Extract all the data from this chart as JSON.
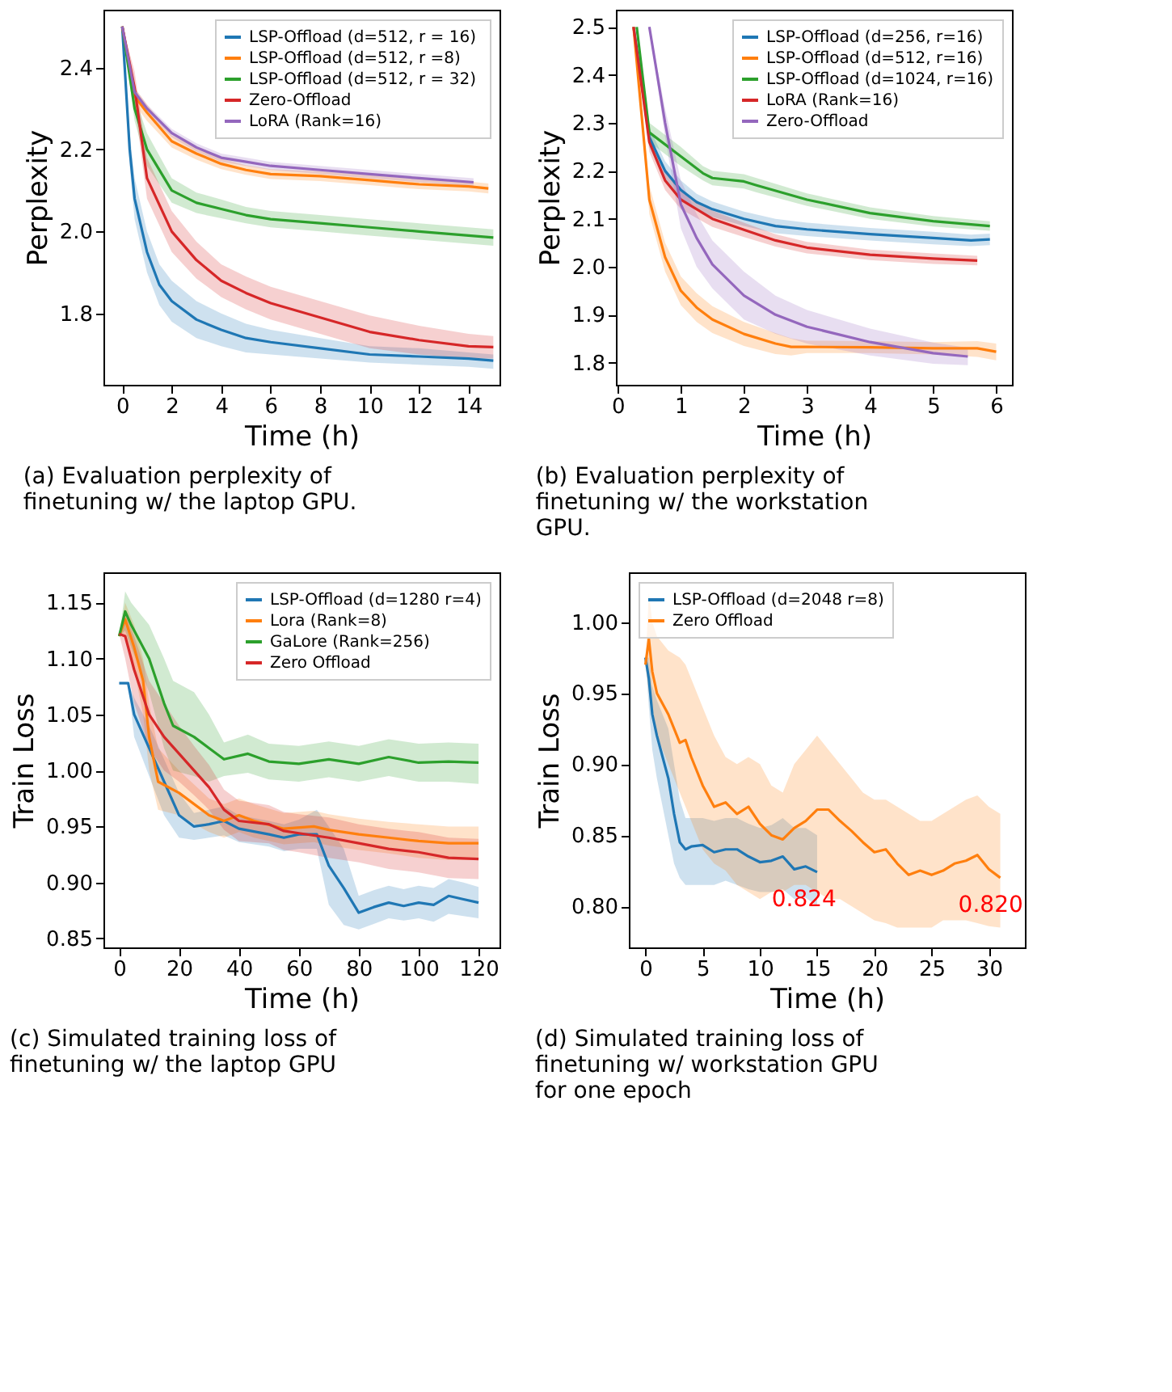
{
  "chart_data": [
    {
      "type": "line",
      "xlabel": "Time (h)",
      "ylabel": "Perplexity",
      "xlim": [
        -0.76,
        15.25
      ],
      "ylim": [
        1.626,
        2.541
      ],
      "xticks": [
        0,
        2,
        4,
        6,
        8,
        10,
        12,
        14
      ],
      "yticks": [
        1.8,
        {
          "value": 2.0,
          "label": "2.0"
        },
        2.2,
        2.4
      ],
      "legend": "top right",
      "grid": false,
      "annotations": [
        "(a) Evaluation perplexity of finetuning w/ the laptop GPU."
      ],
      "series": [
        {
          "name": "LSP-Offload (d=512, r = 16)",
          "color": "#1f77b4",
          "x": [
            0,
            0.3,
            0.5,
            1,
            1.5,
            2,
            3,
            4,
            5,
            6,
            8,
            10,
            12,
            14,
            15
          ],
          "values": [
            2.5,
            2.2,
            2.08,
            1.95,
            1.87,
            1.83,
            1.785,
            1.76,
            1.74,
            1.73,
            1.715,
            1.7,
            1.695,
            1.69,
            1.685
          ],
          "lower": [
            2.5,
            2.16,
            2.03,
            1.9,
            1.82,
            1.78,
            1.74,
            1.72,
            1.705,
            1.7,
            1.69,
            1.68,
            1.675,
            1.67,
            1.665
          ],
          "upper": [
            2.5,
            2.24,
            2.13,
            2.0,
            1.92,
            1.88,
            1.83,
            1.8,
            1.775,
            1.76,
            1.74,
            1.72,
            1.715,
            1.705,
            1.7
          ]
        },
        {
          "name": "LSP-Offload (d=512, r =8)",
          "color": "#ff7f0e",
          "x": [
            0,
            0.5,
            1,
            2,
            3,
            4,
            5,
            6,
            8,
            10,
            12,
            14,
            14.8
          ],
          "values": [
            2.5,
            2.33,
            2.29,
            2.22,
            2.19,
            2.165,
            2.15,
            2.14,
            2.135,
            2.125,
            2.115,
            2.11,
            2.105
          ],
          "lower": [
            2.5,
            2.31,
            2.27,
            2.205,
            2.175,
            2.152,
            2.138,
            2.128,
            2.123,
            2.113,
            2.103,
            2.098,
            2.093
          ],
          "upper": [
            2.5,
            2.35,
            2.31,
            2.235,
            2.205,
            2.178,
            2.162,
            2.152,
            2.147,
            2.137,
            2.127,
            2.122,
            2.117
          ]
        },
        {
          "name": "LSP-Offload (d=512,  r = 32)",
          "color": "#2ca02c",
          "x": [
            0,
            0.5,
            1,
            2,
            3,
            4,
            5,
            6,
            8,
            10,
            12,
            14,
            15
          ],
          "values": [
            2.5,
            2.3,
            2.2,
            2.1,
            2.07,
            2.055,
            2.04,
            2.03,
            2.02,
            2.01,
            2.0,
            1.99,
            1.985
          ],
          "lower": [
            2.5,
            2.27,
            2.16,
            2.07,
            2.045,
            2.032,
            2.02,
            2.01,
            2.0,
            1.99,
            1.98,
            1.97,
            1.965
          ],
          "upper": [
            2.5,
            2.33,
            2.24,
            2.13,
            2.095,
            2.078,
            2.06,
            2.05,
            2.04,
            2.03,
            2.02,
            2.01,
            2.005
          ]
        },
        {
          "name": "Zero-Offload",
          "color": "#d62728",
          "x": [
            0,
            0.5,
            1,
            2,
            3,
            4,
            5,
            6,
            8,
            10,
            12,
            14,
            15
          ],
          "values": [
            2.5,
            2.35,
            2.13,
            2.0,
            1.93,
            1.88,
            1.85,
            1.825,
            1.79,
            1.755,
            1.735,
            1.72,
            1.718
          ],
          "lower": [
            2.5,
            2.31,
            2.08,
            1.95,
            1.885,
            1.84,
            1.81,
            1.785,
            1.75,
            1.715,
            1.7,
            1.69,
            1.69
          ],
          "upper": [
            2.5,
            2.39,
            2.18,
            2.05,
            1.975,
            1.92,
            1.89,
            1.865,
            1.83,
            1.795,
            1.77,
            1.75,
            1.745
          ]
        },
        {
          "name": "LoRA (Rank=16)",
          "color": "#9467bd",
          "x": [
            0,
            0.5,
            1,
            2,
            3,
            4,
            5,
            6,
            8,
            10,
            12,
            14.2
          ],
          "values": [
            2.5,
            2.34,
            2.3,
            2.24,
            2.205,
            2.18,
            2.17,
            2.16,
            2.15,
            2.14,
            2.13,
            2.12
          ],
          "lower": [
            2.5,
            2.33,
            2.29,
            2.23,
            2.195,
            2.17,
            2.16,
            2.15,
            2.14,
            2.13,
            2.12,
            2.11
          ],
          "upper": [
            2.5,
            2.35,
            2.31,
            2.25,
            2.215,
            2.19,
            2.18,
            2.17,
            2.16,
            2.15,
            2.14,
            2.13
          ]
        }
      ]
    },
    {
      "type": "line",
      "xlabel": "Time (h)",
      "ylabel": "Perplexity",
      "xlim": [
        -0.03,
        6.25
      ],
      "ylim": [
        1.754,
        2.536
      ],
      "xticks": [
        0,
        1,
        2,
        3,
        4,
        5,
        6
      ],
      "yticks": [
        1.8,
        1.9,
        {
          "value": 2.0,
          "label": "2.0"
        },
        2.1,
        2.2,
        2.3,
        2.4,
        2.5
      ],
      "legend": "top right",
      "grid": false,
      "annotations": [
        "(b) Evaluation perplexity of finetuning w/ the workstation GPU."
      ],
      "series": [
        {
          "name": "LSP-Offload (d=256, r=16)",
          "color": "#1f77b4",
          "x": [
            0.25,
            0.5,
            0.75,
            1,
            1.25,
            1.5,
            2,
            2.5,
            3,
            4,
            5,
            5.6,
            5.9
          ],
          "values": [
            2.5,
            2.27,
            2.2,
            2.16,
            2.135,
            2.12,
            2.1,
            2.085,
            2.078,
            2.068,
            2.06,
            2.055,
            2.057
          ],
          "lower": [
            2.5,
            2.25,
            2.18,
            2.14,
            2.118,
            2.104,
            2.085,
            2.07,
            2.064,
            2.055,
            2.047,
            2.043,
            2.045
          ],
          "upper": [
            2.5,
            2.29,
            2.22,
            2.18,
            2.152,
            2.136,
            2.115,
            2.1,
            2.092,
            2.081,
            2.073,
            2.067,
            2.069
          ]
        },
        {
          "name": "LSP-Offload (d=512,  r=16)",
          "color": "#ff7f0e",
          "x": [
            0.25,
            0.5,
            0.75,
            1,
            1.25,
            1.5,
            2,
            2.5,
            2.75,
            3,
            4,
            5,
            5.7,
            6
          ],
          "values": [
            2.5,
            2.14,
            2.02,
            1.95,
            1.915,
            1.89,
            1.86,
            1.84,
            1.833,
            1.833,
            1.832,
            1.83,
            1.83,
            1.823
          ],
          "lower": [
            2.5,
            2.11,
            1.99,
            1.92,
            1.885,
            1.862,
            1.835,
            1.818,
            1.815,
            1.82,
            1.82,
            1.817,
            1.812,
            1.805
          ],
          "upper": [
            2.5,
            2.17,
            2.05,
            1.98,
            1.945,
            1.918,
            1.885,
            1.862,
            1.851,
            1.846,
            1.845,
            1.843,
            1.845,
            1.84
          ]
        },
        {
          "name": "LSP-Offload (d=1024, r=16)",
          "color": "#2ca02c",
          "x": [
            0.3,
            0.5,
            1,
            1.35,
            1.5,
            2,
            2.2,
            3,
            4,
            5,
            5.9
          ],
          "values": [
            2.5,
            2.28,
            2.23,
            2.195,
            2.185,
            2.178,
            2.17,
            2.14,
            2.112,
            2.095,
            2.085
          ],
          "lower": [
            2.5,
            2.26,
            2.21,
            2.18,
            2.17,
            2.163,
            2.155,
            2.127,
            2.1,
            2.084,
            2.075
          ],
          "upper": [
            2.5,
            2.3,
            2.25,
            2.21,
            2.2,
            2.193,
            2.185,
            2.153,
            2.124,
            2.106,
            2.095
          ]
        },
        {
          "name": "LoRA (Rank=16)",
          "color": "#d62728",
          "x": [
            0.25,
            0.5,
            0.75,
            1,
            1.5,
            2,
            2.5,
            3,
            4,
            5,
            5.7
          ],
          "values": [
            2.5,
            2.26,
            2.18,
            2.14,
            2.1,
            2.077,
            2.055,
            2.04,
            2.025,
            2.017,
            2.013
          ],
          "lower": [
            2.5,
            2.24,
            2.16,
            2.12,
            2.083,
            2.062,
            2.042,
            2.028,
            2.014,
            2.006,
            2.003
          ],
          "upper": [
            2.5,
            2.28,
            2.2,
            2.16,
            2.117,
            2.092,
            2.068,
            2.052,
            2.036,
            2.028,
            2.023
          ]
        },
        {
          "name": "Zero-Offload",
          "color": "#9467bd",
          "x": [
            0.5,
            0.75,
            1,
            1.25,
            1.5,
            2,
            2.5,
            3,
            4,
            5,
            5.55
          ],
          "values": [
            2.5,
            2.3,
            2.13,
            2.06,
            2.005,
            1.94,
            1.9,
            1.875,
            1.843,
            1.82,
            1.813
          ],
          "lower": [
            2.5,
            2.27,
            2.08,
            2.0,
            1.955,
            1.89,
            1.86,
            1.84,
            1.815,
            1.798,
            1.795
          ],
          "upper": [
            2.5,
            2.33,
            2.18,
            2.11,
            2.055,
            1.99,
            1.94,
            1.91,
            1.871,
            1.842,
            1.831
          ]
        }
      ]
    },
    {
      "type": "line",
      "xlabel": "Time (h)",
      "ylabel": "Train Loss",
      "xlim": [
        -5.25,
        127
      ],
      "ylim": [
        0.842,
        1.177
      ],
      "xticks": [
        0,
        20,
        40,
        60,
        80,
        100,
        120
      ],
      "yticks": [
        0.85,
        {
          "value": 0.9,
          "label": "0.90"
        },
        0.95,
        {
          "value": 1.0,
          "label": "1.00"
        },
        1.05,
        {
          "value": 1.1,
          "label": "1.10"
        },
        1.15
      ],
      "legend": "top right",
      "grid": false,
      "annotations": [
        "(c) Simulated training loss of finetuning w/ the laptop GPU"
      ],
      "series": [
        {
          "name": "LSP-Offload (d=1280 r=4)",
          "color": "#1f77b4",
          "x": [
            0,
            3,
            5,
            10,
            15,
            20,
            25,
            30,
            35,
            40,
            50,
            55,
            60,
            66,
            70,
            75,
            80,
            85,
            90,
            95,
            100,
            105,
            110,
            115,
            120
          ],
          "values": [
            1.078,
            1.078,
            1.05,
            1.02,
            0.99,
            0.96,
            0.95,
            0.952,
            0.955,
            0.948,
            0.943,
            0.94,
            0.943,
            0.943,
            0.915,
            0.895,
            0.873,
            0.878,
            0.882,
            0.879,
            0.882,
            0.88,
            0.888,
            0.885,
            0.882
          ],
          "lower": [
            1.078,
            1.078,
            1.03,
            0.995,
            0.96,
            0.94,
            0.938,
            0.94,
            0.942,
            0.936,
            0.932,
            0.928,
            0.93,
            0.93,
            0.88,
            0.862,
            0.858,
            0.863,
            0.868,
            0.866,
            0.868,
            0.865,
            0.872,
            0.87,
            0.868
          ],
          "upper": [
            1.078,
            1.078,
            1.065,
            1.04,
            1.01,
            0.98,
            0.962,
            0.965,
            0.968,
            0.96,
            0.955,
            0.952,
            0.956,
            0.965,
            0.95,
            0.93,
            0.888,
            0.893,
            0.897,
            0.894,
            0.897,
            0.895,
            0.903,
            0.9,
            0.896
          ]
        },
        {
          "name": "Lora (Rank=8)",
          "color": "#ff7f0e",
          "x": [
            0,
            2,
            5,
            8,
            10,
            13,
            20,
            30,
            35,
            40,
            45,
            55,
            65,
            70,
            80,
            90,
            100,
            110,
            120
          ],
          "values": [
            1.12,
            1.135,
            1.11,
            1.08,
            1.03,
            0.99,
            0.98,
            0.96,
            0.955,
            0.96,
            0.955,
            0.948,
            0.95,
            0.947,
            0.943,
            0.94,
            0.937,
            0.935,
            0.935
          ],
          "lower": [
            1.12,
            1.12,
            1.09,
            1.05,
            1.0,
            0.965,
            0.96,
            0.945,
            0.94,
            0.945,
            0.94,
            0.934,
            0.936,
            0.933,
            0.929,
            0.926,
            0.922,
            0.92,
            0.92
          ],
          "upper": [
            1.12,
            1.15,
            1.13,
            1.1,
            1.06,
            1.02,
            1.0,
            0.975,
            0.97,
            0.975,
            0.97,
            0.962,
            0.964,
            0.961,
            0.957,
            0.954,
            0.952,
            0.95,
            0.95
          ]
        },
        {
          "name": "GaLore (Rank=256)",
          "color": "#2ca02c",
          "x": [
            0,
            2,
            4,
            10,
            15,
            18,
            25,
            30,
            35,
            43,
            50,
            60,
            70,
            80,
            90,
            100,
            110,
            120
          ],
          "values": [
            1.12,
            1.142,
            1.13,
            1.1,
            1.06,
            1.04,
            1.03,
            1.02,
            1.01,
            1.015,
            1.008,
            1.006,
            1.01,
            1.006,
            1.012,
            1.007,
            1.008,
            1.007
          ],
          "lower": [
            1.12,
            1.125,
            1.11,
            1.07,
            1.02,
            1.0,
            0.995,
            0.99,
            0.995,
            0.998,
            0.992,
            0.99,
            0.994,
            0.99,
            0.995,
            0.99,
            0.99,
            0.988
          ],
          "upper": [
            1.12,
            1.16,
            1.15,
            1.13,
            1.1,
            1.08,
            1.07,
            1.05,
            1.025,
            1.032,
            1.024,
            1.022,
            1.026,
            1.022,
            1.028,
            1.024,
            1.025,
            1.024
          ]
        },
        {
          "name": "Zero Offload",
          "color": "#d62728",
          "x": [
            0,
            2,
            5,
            10,
            15,
            20,
            25,
            30,
            35,
            40,
            50,
            55,
            60,
            70,
            80,
            90,
            100,
            110,
            120
          ],
          "values": [
            1.122,
            1.12,
            1.09,
            1.05,
            1.03,
            1.015,
            1.0,
            0.985,
            0.965,
            0.955,
            0.952,
            0.946,
            0.944,
            0.94,
            0.935,
            0.93,
            0.927,
            0.922,
            0.921
          ],
          "lower": [
            1.122,
            1.1,
            1.06,
            1.02,
            1.0,
            0.99,
            0.978,
            0.965,
            0.947,
            0.937,
            0.935,
            0.929,
            0.927,
            0.922,
            0.918,
            0.912,
            0.909,
            0.904,
            0.903
          ],
          "upper": [
            1.122,
            1.14,
            1.12,
            1.08,
            1.06,
            1.04,
            1.022,
            1.005,
            0.983,
            0.973,
            0.969,
            0.963,
            0.961,
            0.958,
            0.952,
            0.948,
            0.945,
            0.94,
            0.939
          ]
        }
      ]
    },
    {
      "type": "line",
      "xlabel": "Time (h)",
      "ylabel": "Train Loss",
      "xlim": [
        -1.45,
        33.15
      ],
      "ylim": [
        0.771,
        1.035
      ],
      "xticks": [
        0,
        5,
        10,
        15,
        20,
        25,
        30
      ],
      "yticks": [
        {
          "value": 0.8,
          "label": "0.80"
        },
        0.85,
        {
          "value": 0.9,
          "label": "0.90"
        },
        0.95,
        {
          "value": 1.0,
          "label": "1.00"
        }
      ],
      "legend": "top left",
      "grid": false,
      "annotations": [
        {
          "text": "0.824",
          "x": 15,
          "y": 0.824
        },
        {
          "text": "0.820",
          "x": 31.3,
          "y": 0.82
        },
        "(d) Simulated training loss of finetuning w/ workstation GPU for one epoch"
      ],
      "series": [
        {
          "name": "LSP-Offload (d=2048 r=8)",
          "color": "#1f77b4",
          "x": [
            0,
            0.3,
            0.6,
            1,
            1.5,
            2,
            2.5,
            3,
            3.5,
            4,
            5,
            6,
            7,
            8,
            9,
            10,
            11,
            12,
            13,
            14,
            15
          ],
          "values": [
            0.975,
            0.96,
            0.935,
            0.92,
            0.905,
            0.89,
            0.865,
            0.845,
            0.84,
            0.842,
            0.843,
            0.838,
            0.84,
            0.84,
            0.835,
            0.831,
            0.832,
            0.835,
            0.826,
            0.828,
            0.824
          ],
          "lower": [
            0.975,
            0.94,
            0.91,
            0.89,
            0.87,
            0.85,
            0.83,
            0.82,
            0.815,
            0.815,
            0.815,
            0.815,
            0.818,
            0.815,
            0.812,
            0.81,
            0.81,
            0.812,
            0.805,
            0.806,
            0.8
          ],
          "upper": [
            0.975,
            0.975,
            0.955,
            0.945,
            0.935,
            0.925,
            0.9,
            0.875,
            0.862,
            0.862,
            0.862,
            0.86,
            0.862,
            0.862,
            0.858,
            0.855,
            0.857,
            0.862,
            0.855,
            0.855,
            0.85
          ]
        },
        {
          "name": "Zero Offload",
          "color": "#ff7f0e",
          "x": [
            0,
            0.3,
            0.6,
            1,
            2,
            3,
            3.5,
            4,
            5,
            6,
            7,
            8,
            9,
            10,
            11,
            12,
            13,
            14,
            15,
            16,
            17,
            18,
            19,
            20,
            21,
            22,
            23,
            24,
            25,
            26,
            27,
            28,
            29,
            30,
            31
          ],
          "values": [
            0.97,
            0.988,
            0.965,
            0.95,
            0.935,
            0.915,
            0.917,
            0.905,
            0.885,
            0.87,
            0.873,
            0.865,
            0.87,
            0.858,
            0.85,
            0.847,
            0.855,
            0.86,
            0.868,
            0.868,
            0.86,
            0.853,
            0.845,
            0.838,
            0.84,
            0.83,
            0.822,
            0.825,
            0.822,
            0.825,
            0.83,
            0.832,
            0.836,
            0.826,
            0.82
          ],
          "lower": [
            0.97,
            0.95,
            0.935,
            0.92,
            0.9,
            0.88,
            0.87,
            0.86,
            0.84,
            0.83,
            0.825,
            0.815,
            0.81,
            0.805,
            0.81,
            0.81,
            0.815,
            0.815,
            0.81,
            0.805,
            0.805,
            0.8,
            0.795,
            0.79,
            0.788,
            0.785,
            0.785,
            0.785,
            0.785,
            0.79,
            0.79,
            0.79,
            0.788,
            0.786,
            0.785
          ],
          "upper": [
            0.97,
            1.02,
            1.0,
            0.99,
            0.98,
            0.975,
            0.97,
            0.96,
            0.94,
            0.92,
            0.905,
            0.9,
            0.905,
            0.9,
            0.885,
            0.88,
            0.9,
            0.91,
            0.92,
            0.91,
            0.9,
            0.89,
            0.88,
            0.875,
            0.875,
            0.87,
            0.865,
            0.86,
            0.86,
            0.865,
            0.87,
            0.875,
            0.878,
            0.87,
            0.865
          ]
        }
      ]
    }
  ]
}
